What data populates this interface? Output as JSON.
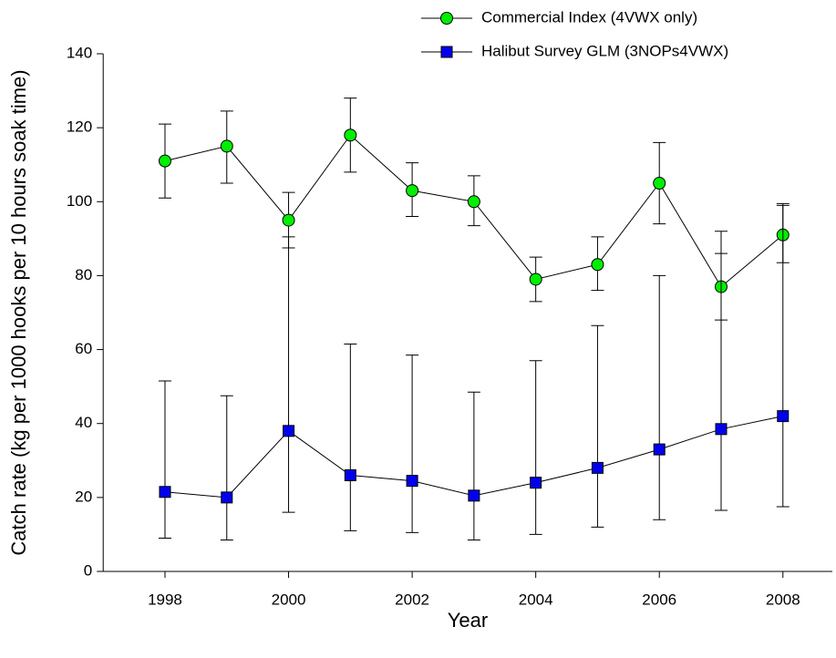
{
  "chart_data": {
    "type": "line",
    "xlabel": "Year",
    "ylabel": "Catch rate (kg per 1000 hooks per 10 hours soak time)",
    "x": [
      1998,
      1999,
      2000,
      2001,
      2002,
      2003,
      2004,
      2005,
      2006,
      2007,
      2008
    ],
    "series": [
      {
        "name": "Commercial Index (4VWX only)",
        "color": "#00ee00",
        "marker": "circle",
        "values": [
          111,
          115,
          95,
          118,
          103,
          100,
          79,
          83,
          105,
          77,
          91
        ],
        "lower": [
          101,
          105,
          87.5,
          108,
          96,
          93.5,
          73,
          76,
          94,
          68,
          83.5
        ],
        "upper": [
          121,
          124.5,
          102.5,
          128,
          110.5,
          107,
          85,
          90.5,
          116,
          92,
          99
        ]
      },
      {
        "name": "Halibut Survey GLM (3NOPs4VWX)",
        "color": "#0000ee",
        "marker": "square",
        "values": [
          21.5,
          20,
          38,
          26,
          24.5,
          20.5,
          24,
          28,
          33,
          38.5,
          42
        ],
        "lower": [
          9,
          8.5,
          16,
          11,
          10.5,
          8.5,
          10,
          12,
          14,
          16.5,
          17.5
        ],
        "upper": [
          51.5,
          47.5,
          90.5,
          61.5,
          58.5,
          48.5,
          57,
          66.5,
          80,
          86,
          99.5
        ]
      }
    ],
    "xlim": [
      1997,
      2008.8
    ],
    "xticks": [
      1998,
      2000,
      2002,
      2004,
      2006,
      2008
    ],
    "ylim": [
      0,
      140
    ],
    "yticks": [
      0,
      20,
      40,
      60,
      80,
      100,
      120,
      140
    ],
    "legend": "top-right"
  }
}
